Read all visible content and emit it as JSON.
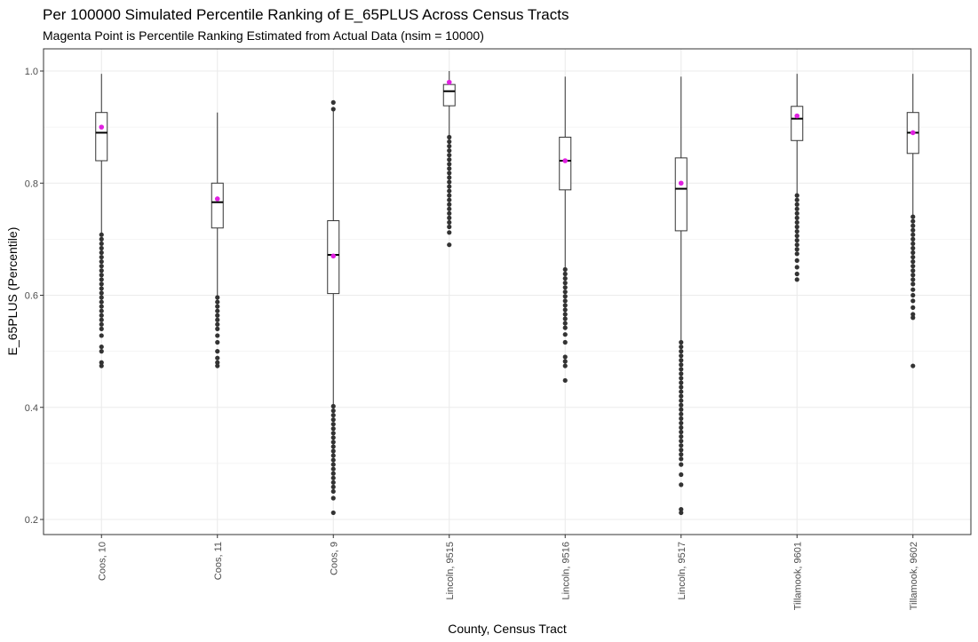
{
  "chart_data": {
    "type": "box",
    "title": "Per 100000 Simulated Percentile Ranking of E_65PLUS Across Census Tracts",
    "subtitle": "Magenta Point is Percentile Ranking Estimated from Actual Data (nsim = 10000)",
    "xlabel": "County, Census Tract",
    "ylabel": "E_65PLUS (Percentile)",
    "ylim": [
      0.18,
      1.02
    ],
    "yticks": [
      0.2,
      0.4,
      0.6,
      0.8,
      1.0
    ],
    "ytick_labels": [
      "0.2",
      "0.4",
      "0.6",
      "0.8",
      "1.0"
    ],
    "grid": true,
    "categories": [
      "Coos, 10",
      "Coos, 11",
      "Coos, 9",
      "Lincoln, 9515",
      "Lincoln, 9516",
      "Lincoln, 9517",
      "Tillamook, 9601",
      "Tillamook, 9602"
    ],
    "boxes": [
      {
        "category": "Coos, 10",
        "whisker_low": 0.71,
        "q1": 0.84,
        "median": 0.89,
        "q3": 0.926,
        "whisker_high": 0.995,
        "actual": 0.9,
        "outliers": [
          0.708,
          0.7,
          0.692,
          0.684,
          0.676,
          0.668,
          0.66,
          0.652,
          0.644,
          0.636,
          0.628,
          0.62,
          0.612,
          0.604,
          0.596,
          0.588,
          0.58,
          0.572,
          0.564,
          0.556,
          0.548,
          0.54,
          0.528,
          0.508,
          0.5,
          0.48,
          0.474
        ]
      },
      {
        "category": "Coos, 11",
        "whisker_low": 0.6,
        "q1": 0.72,
        "median": 0.766,
        "q3": 0.8,
        "whisker_high": 0.926,
        "actual": 0.772,
        "outliers": [
          0.596,
          0.588,
          0.58,
          0.572,
          0.564,
          0.556,
          0.548,
          0.54,
          0.528,
          0.516,
          0.5,
          0.488,
          0.48,
          0.474
        ]
      },
      {
        "category": "Coos, 9",
        "whisker_low": 0.405,
        "q1": 0.603,
        "median": 0.672,
        "q3": 0.733,
        "whisker_high": 0.93,
        "actual": 0.67,
        "outliers": [
          0.944,
          0.932,
          0.402,
          0.394,
          0.386,
          0.378,
          0.37,
          0.362,
          0.354,
          0.346,
          0.338,
          0.33,
          0.322,
          0.314,
          0.306,
          0.298,
          0.29,
          0.282,
          0.274,
          0.266,
          0.258,
          0.25,
          0.238,
          0.212
        ]
      },
      {
        "category": "Lincoln, 9515",
        "whisker_low": 0.884,
        "q1": 0.938,
        "median": 0.964,
        "q3": 0.976,
        "whisker_high": 1.0,
        "actual": 0.98,
        "outliers": [
          0.882,
          0.874,
          0.866,
          0.858,
          0.85,
          0.842,
          0.834,
          0.826,
          0.818,
          0.81,
          0.802,
          0.794,
          0.786,
          0.778,
          0.77,
          0.762,
          0.754,
          0.746,
          0.738,
          0.73,
          0.722,
          0.712,
          0.69
        ]
      },
      {
        "category": "Lincoln, 9516",
        "whisker_low": 0.65,
        "q1": 0.788,
        "median": 0.84,
        "q3": 0.882,
        "whisker_high": 0.99,
        "actual": 0.84,
        "outliers": [
          0.646,
          0.638,
          0.63,
          0.622,
          0.614,
          0.606,
          0.598,
          0.59,
          0.582,
          0.574,
          0.566,
          0.558,
          0.55,
          0.542,
          0.53,
          0.516,
          0.49,
          0.482,
          0.474,
          0.448
        ]
      },
      {
        "category": "Lincoln, 9517",
        "whisker_low": 0.52,
        "q1": 0.715,
        "median": 0.79,
        "q3": 0.845,
        "whisker_high": 0.99,
        "actual": 0.8,
        "outliers": [
          0.516,
          0.508,
          0.5,
          0.492,
          0.484,
          0.476,
          0.468,
          0.46,
          0.452,
          0.444,
          0.436,
          0.428,
          0.42,
          0.412,
          0.404,
          0.396,
          0.388,
          0.38,
          0.372,
          0.364,
          0.356,
          0.348,
          0.34,
          0.332,
          0.324,
          0.316,
          0.308,
          0.298,
          0.28,
          0.262,
          0.218,
          0.212
        ]
      },
      {
        "category": "Tillamook, 9601",
        "whisker_low": 0.78,
        "q1": 0.876,
        "median": 0.915,
        "q3": 0.937,
        "whisker_high": 0.995,
        "actual": 0.92,
        "outliers": [
          0.778,
          0.77,
          0.762,
          0.754,
          0.746,
          0.738,
          0.73,
          0.722,
          0.714,
          0.706,
          0.698,
          0.69,
          0.682,
          0.674,
          0.662,
          0.65,
          0.638,
          0.628
        ]
      },
      {
        "category": "Tillamook, 9602",
        "whisker_low": 0.742,
        "q1": 0.853,
        "median": 0.89,
        "q3": 0.926,
        "whisker_high": 0.995,
        "actual": 0.89,
        "outliers": [
          0.74,
          0.732,
          0.724,
          0.716,
          0.708,
          0.7,
          0.692,
          0.684,
          0.676,
          0.668,
          0.66,
          0.652,
          0.644,
          0.636,
          0.628,
          0.62,
          0.61,
          0.6,
          0.59,
          0.578,
          0.566,
          0.56,
          0.474
        ]
      }
    ],
    "colors": {
      "actual_point": "#e020e0",
      "outlier": "#333333",
      "box_stroke": "#333333",
      "grid": "#ebebeb",
      "panel_border": "#333333"
    }
  }
}
